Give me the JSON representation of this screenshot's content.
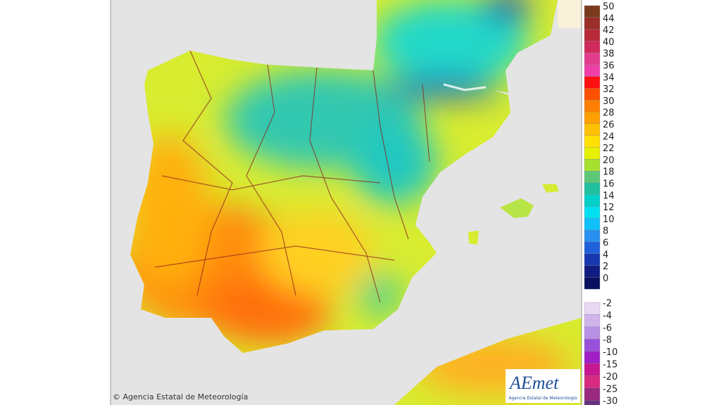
{
  "map": {
    "credit": "© Agencia Estatal de Meteorología",
    "logo": {
      "name": "AEmet",
      "subtitle": "Agencia Estatal de Meteorología"
    }
  },
  "legend": {
    "positive": [
      {
        "label": 50,
        "color": "#7a3a1c"
      },
      {
        "label": 44,
        "color": "#9a2f2a"
      },
      {
        "label": 42,
        "color": "#b82a3a"
      },
      {
        "label": 40,
        "color": "#d02a5a"
      },
      {
        "label": 38,
        "color": "#e23c8c"
      },
      {
        "label": 36,
        "color": "#f040a8"
      },
      {
        "label": 34,
        "color": "#ff1010"
      },
      {
        "label": 32,
        "color": "#ff5000"
      },
      {
        "label": 30,
        "color": "#ff8000"
      },
      {
        "label": 28,
        "color": "#ffa000"
      },
      {
        "label": 26,
        "color": "#ffc000"
      },
      {
        "label": 24,
        "color": "#ffe000"
      },
      {
        "label": 22,
        "color": "#e6f000"
      },
      {
        "label": 20,
        "color": "#a8e030"
      },
      {
        "label": 18,
        "color": "#5cc878"
      },
      {
        "label": 16,
        "color": "#20c0a0"
      },
      {
        "label": 14,
        "color": "#00d0c8"
      },
      {
        "label": 12,
        "color": "#00e0f0"
      },
      {
        "label": 10,
        "color": "#10c0f8"
      },
      {
        "label": 8,
        "color": "#2890f0"
      },
      {
        "label": 6,
        "color": "#2060d8"
      },
      {
        "label": 4,
        "color": "#1838b0"
      },
      {
        "label": 2,
        "color": "#101c80"
      },
      {
        "label": 0,
        "color": "#0a1060"
      }
    ],
    "negative": [
      {
        "label": -2,
        "color": "#e8d8f4"
      },
      {
        "label": -4,
        "color": "#d0b4ec"
      },
      {
        "label": -6,
        "color": "#b890e4"
      },
      {
        "label": -8,
        "color": "#9850dc"
      },
      {
        "label": -10,
        "color": "#a020c8"
      },
      {
        "label": -15,
        "color": "#c81890"
      },
      {
        "label": -20,
        "color": "#d82a80"
      },
      {
        "label": -25,
        "color": "#9a2a80"
      },
      {
        "label": -30,
        "color": "#6a3080"
      }
    ]
  }
}
